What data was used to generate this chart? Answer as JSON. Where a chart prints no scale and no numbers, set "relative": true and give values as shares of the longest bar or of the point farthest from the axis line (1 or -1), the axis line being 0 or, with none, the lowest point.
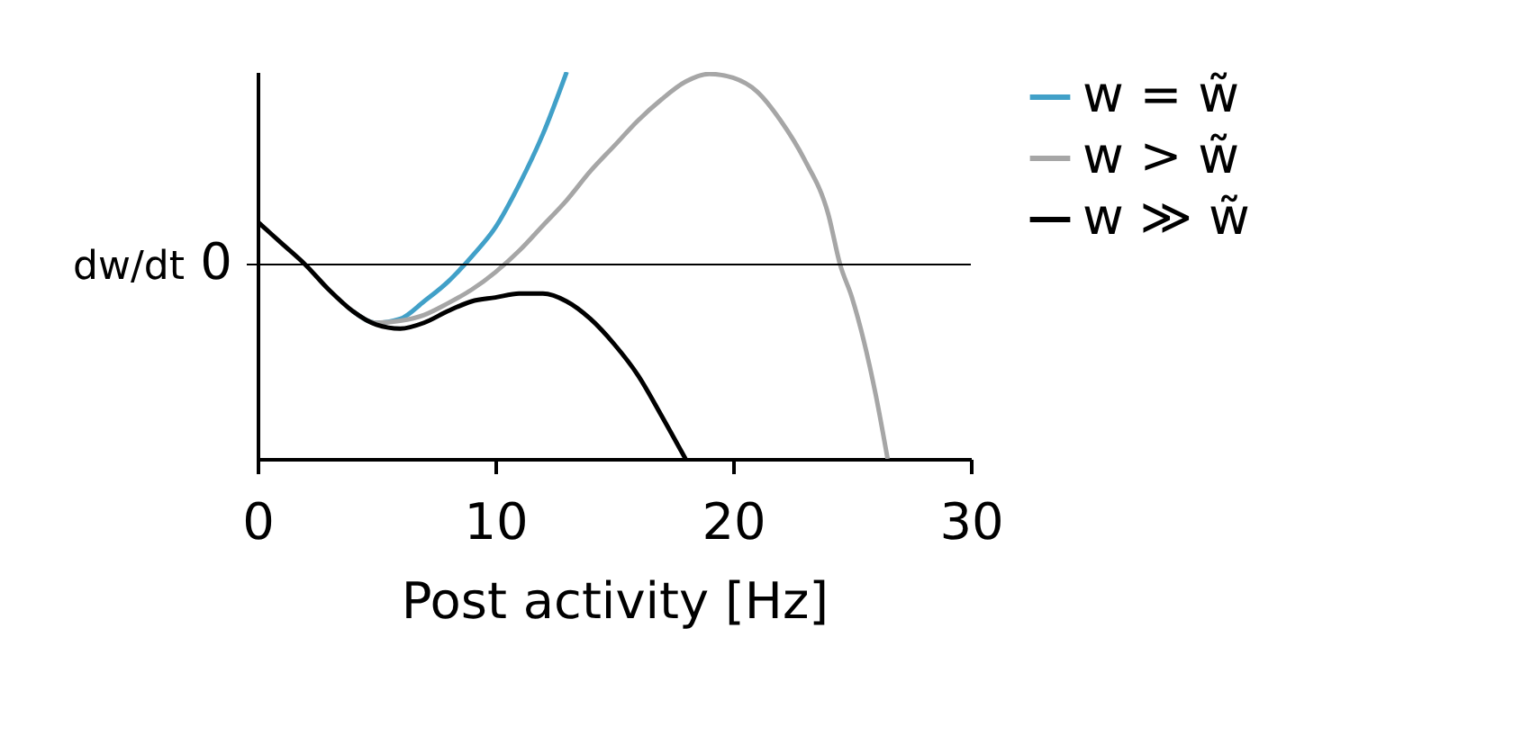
{
  "chart_data": {
    "type": "line",
    "relative": true,
    "xlabel": "Post activity [Hz]",
    "ylabel": "dw/dt",
    "xlim": [
      0,
      30
    ],
    "xticks": [
      0,
      10,
      20,
      30
    ],
    "grid": false,
    "legend": "right",
    "marker": "none",
    "line_style": "solid",
    "ref_lines": [
      {
        "axis": "y",
        "value": 0,
        "label": "0",
        "color": "#000000"
      }
    ],
    "series": [
      {
        "name": "w = w̃",
        "color": "#41a0c8",
        "x": [
          4,
          5,
          6,
          7,
          8,
          9,
          10,
          11,
          12,
          13
        ],
        "values": [
          -0.24,
          -0.3,
          -0.28,
          -0.19,
          -0.09,
          0.04,
          0.19,
          0.41,
          0.67,
          0.99
        ]
      },
      {
        "name": "w > w̃",
        "color": "#a6a6a6",
        "x": [
          4,
          5,
          6,
          7,
          8,
          9,
          10,
          11,
          12,
          13,
          14,
          15,
          16,
          17,
          18,
          19,
          20,
          21,
          22,
          23,
          24,
          24.5,
          25,
          26,
          26.5
        ],
        "values": [
          -0.24,
          -0.3,
          -0.29,
          -0.26,
          -0.2,
          -0.13,
          -0.04,
          0.07,
          0.2,
          0.33,
          0.48,
          0.61,
          0.74,
          0.85,
          0.94,
          0.98,
          0.96,
          0.89,
          0.74,
          0.54,
          0.26,
          0.0,
          -0.17,
          -0.67,
          -1
        ]
      },
      {
        "name": "w ≫ w̃",
        "color": "#000000",
        "x": [
          0,
          1,
          2,
          3,
          4,
          5,
          6,
          7,
          8,
          9,
          10,
          11,
          12,
          13,
          14,
          15,
          16,
          17,
          18
        ],
        "values": [
          0.22,
          0.11,
          0.0,
          -0.13,
          -0.24,
          -0.31,
          -0.33,
          -0.3,
          -0.24,
          -0.19,
          -0.17,
          -0.15,
          -0.15,
          -0.19,
          -0.28,
          -0.41,
          -0.57,
          -0.78,
          -1
        ]
      }
    ]
  }
}
